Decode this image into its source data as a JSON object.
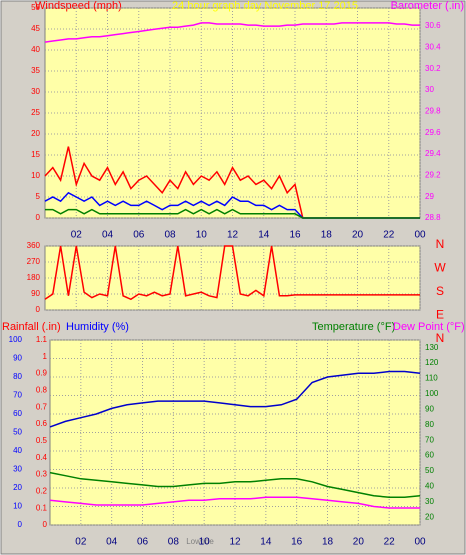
{
  "chart_data": [
    {
      "type": "line",
      "title": "24 hour graph day   November 17 2015",
      "ylabel": "Windspeed (mph)",
      "y2label": "Barometer (.in)",
      "grid": true,
      "x": [
        0,
        0.5,
        1,
        1.5,
        2,
        2.5,
        3,
        3.5,
        4,
        4.5,
        5,
        5.5,
        6,
        6.5,
        7,
        7.5,
        8,
        8.5,
        9,
        9.5,
        10,
        10.5,
        11,
        11.5,
        12,
        12.5,
        13,
        13.5,
        14,
        14.5,
        15,
        15.5,
        16,
        16.5,
        17,
        17.5,
        18,
        18.5,
        19,
        19.5,
        20,
        20.5,
        21,
        21.5,
        22,
        22.5,
        23,
        23.5,
        24
      ],
      "xlim": [
        0,
        24
      ],
      "xticks": [
        {
          "value": 2,
          "label": "02"
        },
        {
          "value": 4,
          "label": "04"
        },
        {
          "value": 6,
          "label": "06"
        },
        {
          "value": 8,
          "label": "08"
        },
        10,
        12,
        14,
        16,
        18,
        20,
        22,
        {
          "value": 24,
          "label": "00"
        }
      ],
      "ylim": [
        0,
        50
      ],
      "yticks": [
        0,
        5,
        10,
        15,
        20,
        25,
        30,
        35,
        40,
        45,
        50
      ],
      "ycolor": "#ff0000",
      "y2lim": [
        28.8,
        30.77
      ],
      "y2ticks": [
        28.8,
        29,
        29.2,
        29.4,
        29.6,
        29.8,
        {
          "value": 30,
          "label": "30"
        },
        30.2,
        30.4,
        30.6
      ],
      "y2color": "#ff00ff",
      "series": [
        {
          "color": "#ff0000",
          "values": [
            10,
            12,
            9,
            17,
            8,
            13,
            10,
            9,
            12,
            8,
            11,
            7,
            9,
            10,
            8,
            6,
            9,
            7,
            11,
            8,
            10,
            9,
            11,
            8,
            12,
            9,
            10,
            8,
            9,
            7,
            10,
            6,
            8,
            0,
            0,
            0,
            0,
            0,
            0,
            0,
            0,
            0,
            0,
            0,
            0,
            0,
            0,
            0,
            0
          ]
        },
        {
          "color": "#0000ff",
          "values": [
            4,
            5,
            4,
            6,
            5,
            4,
            5,
            3,
            4,
            3,
            4,
            3,
            3,
            4,
            3,
            2,
            3,
            3,
            4,
            3,
            4,
            3,
            4,
            3,
            5,
            4,
            4,
            3,
            3,
            2,
            3,
            2,
            2,
            0,
            0,
            0,
            0,
            0,
            0,
            0,
            0,
            0,
            0,
            0,
            0,
            0,
            0,
            0,
            0
          ]
        },
        {
          "color": "#008000",
          "values": [
            2,
            2,
            1,
            2,
            2,
            1,
            2,
            1,
            1,
            1,
            1,
            1,
            1,
            1,
            1,
            1,
            1,
            1,
            2,
            1,
            2,
            1,
            2,
            1,
            2,
            1,
            1,
            1,
            1,
            1,
            1,
            1,
            1,
            0,
            0,
            0,
            0,
            0,
            0,
            0,
            0,
            0,
            0,
            0,
            0,
            0,
            0,
            0,
            0
          ]
        },
        {
          "color": "#ff00ff",
          "axis": "y2",
          "values": [
            30.45,
            30.46,
            30.47,
            30.48,
            30.48,
            30.49,
            30.5,
            30.5,
            30.51,
            30.52,
            30.53,
            30.54,
            30.55,
            30.56,
            30.57,
            30.58,
            30.59,
            30.59,
            30.6,
            30.61,
            30.63,
            30.63,
            30.62,
            30.62,
            30.62,
            30.62,
            30.61,
            30.61,
            30.6,
            30.6,
            30.6,
            30.61,
            30.61,
            30.62,
            30.62,
            30.62,
            30.62,
            30.62,
            30.63,
            30.63,
            30.63,
            30.63,
            30.63,
            30.63,
            30.63,
            30.62,
            30.62,
            30.61,
            30.61
          ]
        }
      ]
    },
    {
      "type": "line",
      "grid": true,
      "x": [
        0,
        0.5,
        1,
        1.5,
        2,
        2.5,
        3,
        3.5,
        4,
        4.5,
        5,
        5.5,
        6,
        6.5,
        7,
        7.5,
        8,
        8.5,
        9,
        9.5,
        10,
        10.5,
        11,
        11.5,
        12,
        12.5,
        13,
        13.5,
        14,
        14.5,
        15,
        15.5,
        16,
        16.5,
        17,
        17.5,
        18,
        18.5,
        19,
        19.5,
        20,
        20.5,
        21,
        21.5,
        22,
        22.5,
        23,
        23.5,
        24
      ],
      "xlim": [
        0,
        24
      ],
      "xticks": [
        2,
        4,
        6,
        8,
        10,
        12,
        14,
        16,
        18,
        20,
        22,
        24
      ],
      "ylim": [
        0,
        360
      ],
      "yticks": [
        0,
        90,
        180,
        270,
        360
      ],
      "ycolor": "#ff0000",
      "y2ticks": [
        {
          "value": 360,
          "label": "N"
        },
        {
          "value": 270,
          "label": "W"
        },
        {
          "value": 180,
          "label": "S"
        },
        {
          "value": 90,
          "label": "E"
        },
        {
          "value": 0,
          "label": "N"
        }
      ],
      "y2color": "#ff0000",
      "series": [
        {
          "color": "#ff0000",
          "values": [
            60,
            90,
            360,
            80,
            360,
            100,
            70,
            90,
            80,
            360,
            80,
            60,
            90,
            80,
            100,
            80,
            90,
            360,
            80,
            90,
            100,
            80,
            70,
            360,
            360,
            90,
            80,
            110,
            80,
            360,
            80,
            80,
            85,
            85,
            85,
            85,
            85,
            85,
            85,
            85,
            85,
            85,
            85,
            85,
            85,
            85,
            85,
            85,
            85
          ]
        }
      ]
    },
    {
      "type": "line",
      "grid": true,
      "ylabel": "Humidity (%)",
      "y3label": "Rainfall (.in)",
      "y2label": "Temperature (°F)",
      "y4label": "Dew Point (°F)",
      "annotation": "Lowtide",
      "x": [
        0,
        1,
        2,
        3,
        4,
        5,
        6,
        7,
        8,
        9,
        10,
        11,
        12,
        13,
        14,
        15,
        16,
        17,
        18,
        19,
        20,
        21,
        22,
        23,
        24
      ],
      "xlim": [
        0,
        24
      ],
      "xticks": [
        {
          "value": 2,
          "label": "02"
        },
        {
          "value": 4,
          "label": "04"
        },
        {
          "value": 6,
          "label": "06"
        },
        {
          "value": 8,
          "label": "08"
        },
        10,
        12,
        14,
        16,
        18,
        20,
        22,
        {
          "value": 24,
          "label": "00"
        }
      ],
      "ylim": [
        0,
        100
      ],
      "yticks": [
        0,
        10,
        20,
        30,
        40,
        50,
        60,
        70,
        80,
        90,
        100
      ],
      "ycolor": "#0000ff",
      "y3lim": [
        0,
        1.1
      ],
      "y3ticks": [
        0,
        0.1,
        0.2,
        0.3,
        0.4,
        0.5,
        0.6,
        0.7,
        0.8,
        0.9,
        1,
        1.1
      ],
      "y3color": "#ff0000",
      "y2lim": [
        15,
        135
      ],
      "y2ticks": [
        20,
        30,
        40,
        50,
        60,
        70,
        80,
        90,
        100,
        110,
        120,
        130
      ],
      "y2color": "#008000",
      "y4color": "#ff00ff",
      "series": [
        {
          "color": "#0000cc",
          "values": [
            53,
            56,
            58,
            60,
            63,
            65,
            66,
            67,
            67,
            67,
            67,
            66,
            65,
            64,
            64,
            65,
            68,
            77,
            80,
            81,
            82,
            82,
            83,
            83,
            82
          ]
        },
        {
          "color": "#008000",
          "axis": "y2",
          "values": [
            49,
            47,
            45,
            44,
            43,
            42,
            41,
            40,
            40,
            41,
            42,
            42,
            43,
            43,
            44,
            45,
            45,
            43,
            40,
            38,
            36,
            34,
            33,
            33,
            34
          ]
        },
        {
          "color": "#ff00ff",
          "axis": "y2",
          "values": [
            31,
            30,
            29,
            28,
            28,
            28,
            28,
            29,
            30,
            31,
            31,
            32,
            32,
            32,
            33,
            33,
            33,
            32,
            31,
            30,
            29,
            27,
            26,
            26,
            26
          ]
        }
      ]
    }
  ]
}
